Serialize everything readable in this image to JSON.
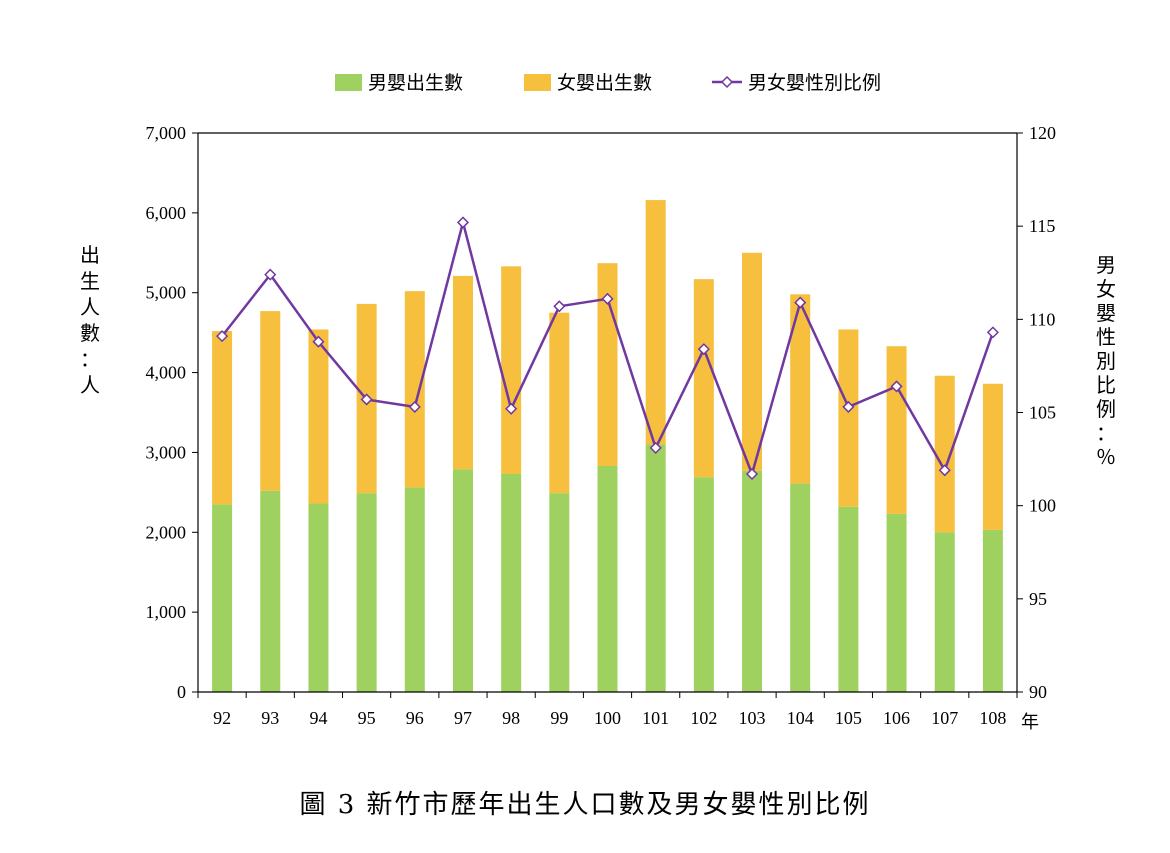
{
  "caption": "圖 3  新竹市歷年出生人口數及男女嬰性別比例",
  "x_unit": "年",
  "y_left_title": "出生人數：人",
  "y_right_title": "男女嬰性別比例：％",
  "colors": {
    "male": "#9fd160",
    "female": "#f6bf3e",
    "ratio": "#7138a1",
    "axis": "#000000"
  },
  "chart_data": {
    "type": "bar",
    "stacked": true,
    "categories": [
      "92",
      "93",
      "94",
      "95",
      "96",
      "97",
      "98",
      "99",
      "100",
      "101",
      "102",
      "103",
      "104",
      "105",
      "106",
      "107",
      "108"
    ],
    "series": [
      {
        "name": "男嬰出生數",
        "type": "bar",
        "axis": "left",
        "values": [
          2350,
          2520,
          2360,
          2490,
          2560,
          2790,
          2730,
          2490,
          2830,
          3100,
          2690,
          2770,
          2610,
          2320,
          2230,
          2000,
          2030
        ]
      },
      {
        "name": "女嬰出生數",
        "type": "bar",
        "axis": "left",
        "values": [
          2170,
          2250,
          2180,
          2370,
          2460,
          2420,
          2600,
          2260,
          2540,
          3060,
          2480,
          2730,
          2370,
          2220,
          2100,
          1960,
          1830
        ]
      },
      {
        "name": "男女嬰性別比例",
        "type": "line",
        "axis": "right",
        "values": [
          109.1,
          112.4,
          108.8,
          105.7,
          105.3,
          115.2,
          105.2,
          110.7,
          111.1,
          103.1,
          108.4,
          101.7,
          110.9,
          105.3,
          106.4,
          101.9,
          109.3
        ]
      }
    ],
    "y_left": {
      "min": 0,
      "max": 7000,
      "ticks": [
        "0",
        "1,000",
        "2,000",
        "3,000",
        "4,000",
        "5,000",
        "6,000",
        "7,000"
      ]
    },
    "y_right": {
      "min": 90,
      "max": 120,
      "ticks": [
        "90",
        "95",
        "100",
        "105",
        "110",
        "115",
        "120"
      ]
    },
    "grid": false,
    "legend_position": "top"
  }
}
